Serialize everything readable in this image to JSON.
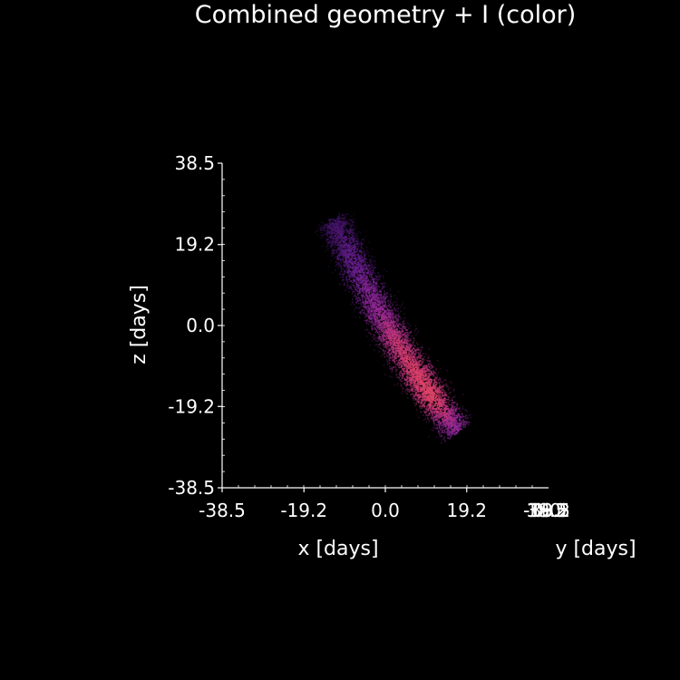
{
  "chart_data": {
    "type": "scatter",
    "title": "Combined geometry + I (color)",
    "xlabel": "x [days]",
    "ylabel": "y [days]",
    "zlabel": "z [days]",
    "xlim": [
      -38.5,
      38.5
    ],
    "zlim": [
      -38.5,
      38.5
    ],
    "x_ticks": [
      "-38.5",
      "-19.2",
      "0.0",
      "19.2"
    ],
    "z_ticks": [
      "38.5",
      "19.2",
      "0.0",
      "-19.2",
      "-38.5"
    ],
    "y_ticks_overlapping": [
      "-38.5",
      "-19.2",
      "0.0",
      "19.2",
      "38.5"
    ],
    "background": "#000000",
    "axis_color": "#ffffff",
    "colormap": "magma",
    "color_low": "#5a1a8a",
    "color_mid": "#8a2a9a",
    "color_high": "#e0446a",
    "structure": {
      "description_hidden": true,
      "upper_end": {
        "x": -13,
        "z": 26
      },
      "lower_end": {
        "x": 19,
        "z": -27
      },
      "center_line": [
        {
          "x": -12.5,
          "z": 25,
          "I": 0.15
        },
        {
          "x": -8,
          "z": 16,
          "I": 0.3
        },
        {
          "x": -3,
          "z": 6,
          "I": 0.5
        },
        {
          "x": 2,
          "z": -3,
          "I": 0.75
        },
        {
          "x": 7,
          "z": -11,
          "I": 0.85
        },
        {
          "x": 11,
          "z": -17,
          "I": 0.9
        },
        {
          "x": 17,
          "z": -25,
          "I": 0.5
        }
      ]
    }
  }
}
